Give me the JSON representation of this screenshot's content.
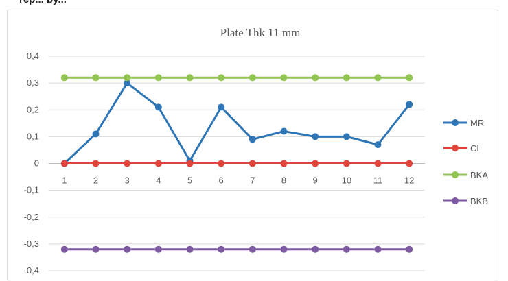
{
  "header_fragment": "rep... by...",
  "chart_data": {
    "type": "line",
    "title": "Plate Thk 11 mm",
    "xlabel": "",
    "ylabel": "",
    "categories": [
      "1",
      "2",
      "3",
      "4",
      "5",
      "6",
      "7",
      "8",
      "9",
      "10",
      "11",
      "12"
    ],
    "ylim": [
      -0.4,
      0.4
    ],
    "yticks": [
      0.4,
      0.3,
      0.2,
      0.1,
      0,
      -0.1,
      -0.2,
      -0.3,
      -0.4
    ],
    "ytick_labels": [
      "0,4",
      "0,3",
      "0,2",
      "0,1",
      "0",
      "-0,1",
      "-0,2",
      "-0,3",
      "-0,4"
    ],
    "grid": true,
    "legend_position": "right",
    "series": [
      {
        "name": "MR",
        "color": "#2e75b6",
        "values": [
          0,
          0.11,
          0.3,
          0.21,
          0.01,
          0.21,
          0.09,
          0.12,
          0.1,
          0.1,
          0.07,
          0.22
        ]
      },
      {
        "name": "CL",
        "color": "#e0443b",
        "values": [
          0,
          0,
          0,
          0,
          0,
          0,
          0,
          0,
          0,
          0,
          0,
          0
        ]
      },
      {
        "name": "BKA",
        "color": "#92c452",
        "values": [
          0.32,
          0.32,
          0.32,
          0.32,
          0.32,
          0.32,
          0.32,
          0.32,
          0.32,
          0.32,
          0.32,
          0.32
        ]
      },
      {
        "name": "BKB",
        "color": "#7e5aa2",
        "values": [
          -0.32,
          -0.32,
          -0.32,
          -0.32,
          -0.32,
          -0.32,
          -0.32,
          -0.32,
          -0.32,
          -0.32,
          -0.32,
          -0.32
        ]
      }
    ]
  }
}
